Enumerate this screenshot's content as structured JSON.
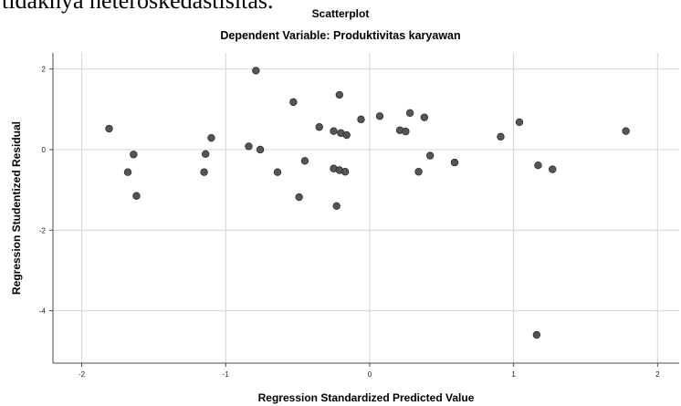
{
  "page_text": {
    "clipped_line": "tidaknya heteroskedastisitas."
  },
  "colors": {
    "background": "#ffffff",
    "grid": "#d4d4d4",
    "axis": "#4a4a4a",
    "point_fill": "#555555",
    "point_stroke": "#2e2e2e"
  },
  "chart_data": {
    "type": "scatter",
    "title": "Scatterplot",
    "subtitle": "Dependent Variable: Produktivitas karyawan",
    "xlabel": "Regression Standardized Predicted Value",
    "ylabel": "Regression Studentized Residual",
    "xlim": [
      -2.2,
      2.15
    ],
    "ylim": [
      -5.3,
      2.4
    ],
    "xticks": [
      -2,
      -1,
      0,
      1,
      2
    ],
    "yticks": [
      2,
      0,
      -2,
      -4
    ],
    "grid": true,
    "points": [
      {
        "x": -1.81,
        "y": 0.52
      },
      {
        "x": -1.68,
        "y": -0.56
      },
      {
        "x": -1.64,
        "y": -0.12
      },
      {
        "x": -1.62,
        "y": -1.15
      },
      {
        "x": -1.15,
        "y": -0.56
      },
      {
        "x": -1.14,
        "y": -0.11
      },
      {
        "x": -1.1,
        "y": 0.29
      },
      {
        "x": -0.84,
        "y": 0.08
      },
      {
        "x": -0.79,
        "y": 1.96
      },
      {
        "x": -0.76,
        "y": 0.0
      },
      {
        "x": -0.64,
        "y": -0.56
      },
      {
        "x": -0.53,
        "y": 1.18
      },
      {
        "x": -0.49,
        "y": -1.18
      },
      {
        "x": -0.45,
        "y": -0.28
      },
      {
        "x": -0.35,
        "y": 0.56
      },
      {
        "x": -0.25,
        "y": -0.47
      },
      {
        "x": -0.25,
        "y": 0.46
      },
      {
        "x": -0.23,
        "y": -1.4
      },
      {
        "x": -0.21,
        "y": 1.36
      },
      {
        "x": -0.21,
        "y": -0.51
      },
      {
        "x": -0.2,
        "y": 0.41
      },
      {
        "x": -0.17,
        "y": -0.55
      },
      {
        "x": -0.16,
        "y": 0.36
      },
      {
        "x": -0.06,
        "y": 0.75
      },
      {
        "x": 0.07,
        "y": 0.83
      },
      {
        "x": 0.21,
        "y": 0.48
      },
      {
        "x": 0.25,
        "y": 0.45
      },
      {
        "x": 0.28,
        "y": 0.91
      },
      {
        "x": 0.34,
        "y": -0.55
      },
      {
        "x": 0.38,
        "y": 0.8
      },
      {
        "x": 0.42,
        "y": -0.15
      },
      {
        "x": 0.59,
        "y": -0.32
      },
      {
        "x": 0.91,
        "y": 0.32
      },
      {
        "x": 1.04,
        "y": 0.68
      },
      {
        "x": 1.17,
        "y": -0.39
      },
      {
        "x": 1.27,
        "y": -0.49
      },
      {
        "x": 1.78,
        "y": 0.46
      },
      {
        "x": 1.16,
        "y": -4.6
      }
    ]
  }
}
